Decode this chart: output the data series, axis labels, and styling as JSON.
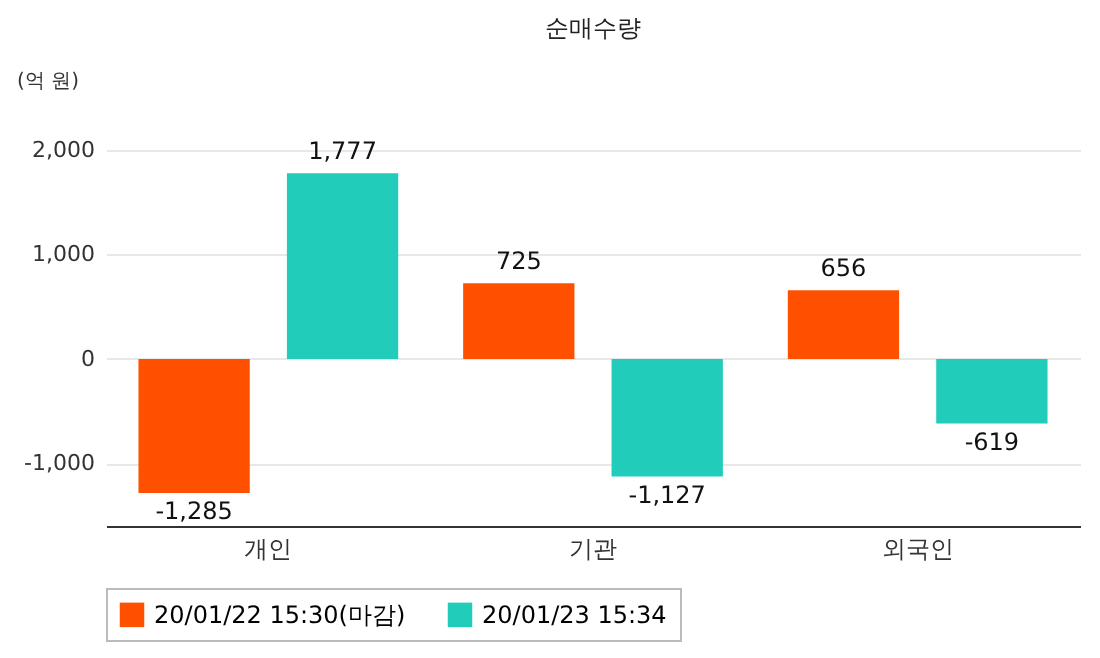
{
  "chart_data": {
    "type": "bar",
    "title": "순매수량",
    "ylabel": "(억 원)",
    "categories": [
      "개인",
      "기관",
      "외국인"
    ],
    "series": [
      {
        "name": "20/01/22 15:30(마감)",
        "color": "#ff5000",
        "values": [
          -1285,
          725,
          656
        ],
        "value_labels": [
          "-1,285",
          "725",
          "656"
        ]
      },
      {
        "name": "20/01/23 15:34",
        "color": "#22ccbb",
        "values": [
          1777,
          -1127,
          -619
        ],
        "value_labels": [
          "1,777",
          "-1,127",
          "-619"
        ]
      }
    ],
    "ylim": [
      -1600,
      2000
    ],
    "yticks": [
      {
        "value": -1000,
        "label": "-1,000"
      },
      {
        "value": 0,
        "label": "0"
      },
      {
        "value": 1000,
        "label": "1,000"
      },
      {
        "value": 2000,
        "label": "2,000"
      }
    ],
    "grid": "y",
    "legend": "bottom"
  }
}
